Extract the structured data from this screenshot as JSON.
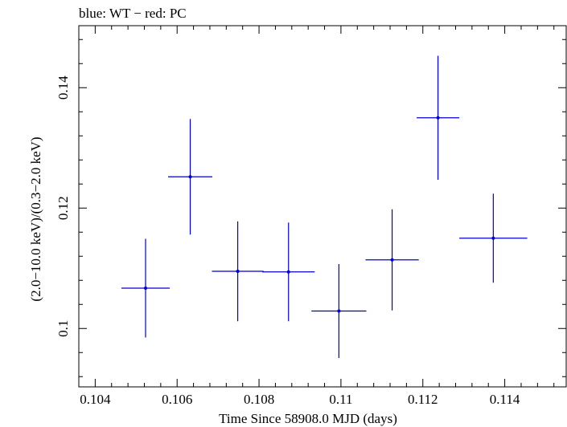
{
  "chart_data": {
    "type": "scatter",
    "title": "blue: WT − red: PC",
    "xlabel": "Time Since 58908.0 MJD (days)",
    "ylabel": "(2.0−10.0 keV)/(0.3−2.0 keV)",
    "xlim": [
      0.1036,
      0.1155
    ],
    "ylim": [
      0.0903,
      0.1503
    ],
    "x_ticks": [
      0.104,
      0.106,
      0.108,
      0.11,
      0.112,
      0.114
    ],
    "x_tick_labels": [
      "0.104",
      "0.106",
      "0.108",
      "0.11",
      "0.112",
      "0.114"
    ],
    "y_ticks": [
      0.1,
      0.12,
      0.14
    ],
    "y_tick_labels": [
      "0.1",
      "0.12",
      "0.14"
    ],
    "grid": false,
    "series": [
      {
        "color": "#0000cc",
        "points": [
          {
            "x": 0.10523,
            "xerr": 0.00059,
            "y": 0.1067,
            "yerr": 0.0082
          },
          {
            "x": 0.10632,
            "xerr": 0.00054,
            "y": 0.1252,
            "yerr": 0.0096
          },
          {
            "x": 0.10748,
            "xerr": 0.00063,
            "y": 0.1095,
            "yerr": 0.0083
          },
          {
            "x": 0.10872,
            "xerr": 0.00064,
            "y": 0.1094,
            "yerr": 0.0082
          },
          {
            "x": 0.10995,
            "xerr": 0.00067,
            "y": 0.1029,
            "yerr": 0.0078
          },
          {
            "x": 0.11125,
            "xerr": 0.00065,
            "y": 0.1114,
            "yerr": 0.0084
          },
          {
            "x": 0.11237,
            "xerr": 0.00052,
            "y": 0.135,
            "yerr": 0.0103
          },
          {
            "x": 0.11372,
            "xerr": 0.00083,
            "y": 0.115,
            "yerr": 0.0074
          }
        ]
      }
    ]
  }
}
